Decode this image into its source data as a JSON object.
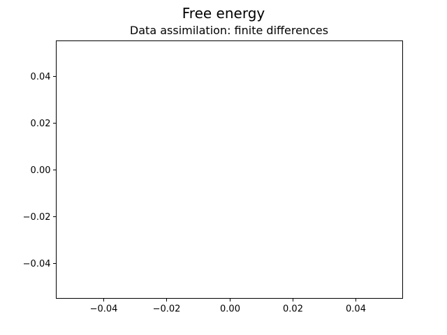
{
  "chart_data": {
    "type": "line",
    "title": "Free energy",
    "subtitle": "Data assimilation: finite differences",
    "xlabel": "",
    "ylabel": "",
    "xlim": [
      -0.055,
      0.055
    ],
    "ylim": [
      -0.055,
      0.055
    ],
    "x_ticks": [
      -0.04,
      -0.02,
      0.0,
      0.02,
      0.04
    ],
    "x_tick_labels": [
      "−0.04",
      "−0.02",
      "0.00",
      "0.02",
      "0.04"
    ],
    "y_ticks": [
      -0.04,
      -0.02,
      0.0,
      0.02,
      0.04
    ],
    "y_tick_labels": [
      "−0.04",
      "−0.02",
      "0.00",
      "0.02",
      "0.04"
    ],
    "grid": false,
    "series": [
      {
        "x": [],
        "y": []
      }
    ],
    "colors": {
      "axes": "#000000",
      "background": "#ffffff"
    }
  }
}
